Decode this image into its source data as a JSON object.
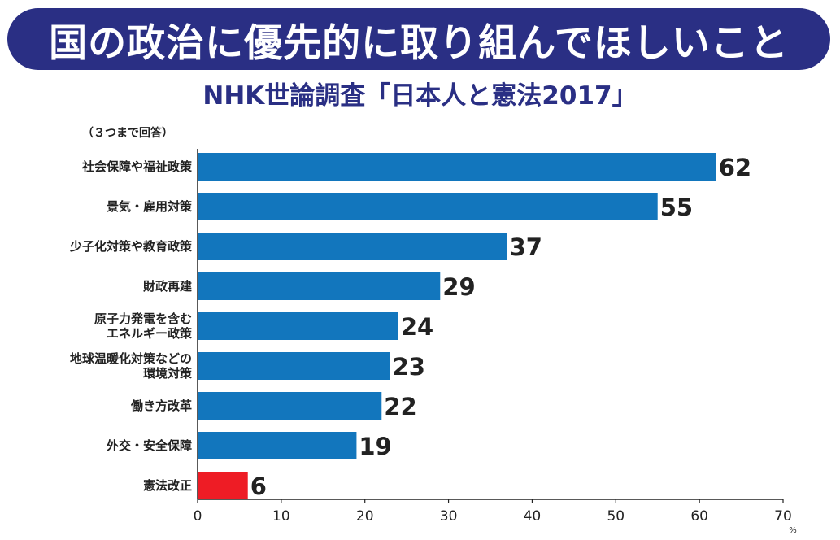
{
  "title": "国の政治に優先的に取り組んでほしいこと",
  "subtitle": "NHK世論調査「日本人と憲法2017」",
  "note": "（３つまで回答）",
  "colors": {
    "banner": "#2a2f84",
    "bar": "#1276bd",
    "highlight": "#ee1c25",
    "subtitle": "#2a2f84"
  },
  "chart_data": {
    "type": "bar",
    "orientation": "horizontal",
    "categories": [
      [
        "社会保障や福祉政策"
      ],
      [
        "景気・雇用対策"
      ],
      [
        "少子化対策や教育政策"
      ],
      [
        "財政再建"
      ],
      [
        "原子力発電を含む",
        "エネルギー政策"
      ],
      [
        "地球温暖化対策などの",
        "環境対策"
      ],
      [
        "働き方改革"
      ],
      [
        "外交・安全保障"
      ],
      [
        "憲法改正"
      ]
    ],
    "values": [
      62,
      55,
      37,
      29,
      24,
      23,
      22,
      19,
      6
    ],
    "highlight_index": 8,
    "xlim": [
      0,
      70
    ],
    "xticks": [
      0,
      10,
      20,
      30,
      40,
      50,
      60,
      70
    ],
    "unit": "%",
    "grid": false
  }
}
